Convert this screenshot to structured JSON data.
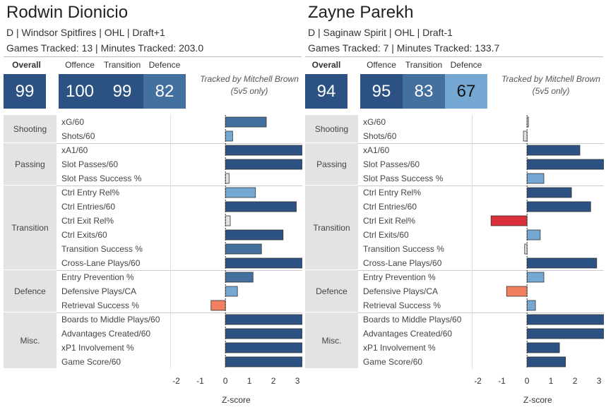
{
  "score_headers": {
    "overall": "Overall",
    "offence": "Offence",
    "transition": "Transition",
    "defence": "Defence"
  },
  "tracked": {
    "line1": "Tracked by Mitchell Brown",
    "line2": "(5v5 only)"
  },
  "axis_title": "Z-score",
  "colors": {
    "dark": "#2b5283",
    "mid": "#4470a0",
    "light": "#74a7d2",
    "neutral": "#e6e1e0",
    "neg_red": "#d9303c",
    "neg_salmon": "#f28060"
  },
  "categories": [
    {
      "name": "Shooting",
      "metrics": [
        "xG/60",
        "Shots/60"
      ]
    },
    {
      "name": "Passing",
      "metrics": [
        "xA1/60",
        "Slot Passes/60",
        "Slot Pass Success %"
      ]
    },
    {
      "name": "Transition",
      "metrics": [
        "Ctrl Entry Rel%",
        "Ctrl Entries/60",
        "Ctrl Exit Rel%",
        "Ctrl Exits/60",
        "Transition Success %",
        "Cross-Lane Plays/60"
      ]
    },
    {
      "name": "Defence",
      "metrics": [
        "Entry Prevention %",
        "Defensive Plays/CA",
        "Retrieval Success %"
      ]
    },
    {
      "name": "Misc.",
      "metrics": [
        "Boards to Middle Plays/60",
        "Advantages Created/60",
        "xP1 Involvement %",
        "Game Score/60"
      ]
    }
  ],
  "players": [
    {
      "name": "Rodwin Dionicio",
      "info_line1": "D | Windsor Spitfires | OHL | Draft+1",
      "info_line2": "Games Tracked: 13 | Minutes Tracked: 203.0",
      "scores": {
        "overall": "99",
        "offence": "100",
        "transition": "99",
        "defence": "82"
      },
      "score_colors": {
        "overall": "#2b5283",
        "offence": "#2b5283",
        "transition": "#2b5283",
        "defence": "#4470a0"
      }
    },
    {
      "name": "Zayne Parekh",
      "info_line1": "D | Saginaw Spirit | OHL | Draft-1",
      "info_line2": "Games Tracked: 7 | Minutes Tracked: 133.7",
      "scores": {
        "overall": "94",
        "offence": "95",
        "transition": "83",
        "defence": "67"
      },
      "score_colors": {
        "overall": "#2b5283",
        "offence": "#2b5283",
        "transition": "#4470a0",
        "defence": "#74a7d2"
      }
    }
  ],
  "chart_data": [
    {
      "type": "bar",
      "title": "Rodwin Dionicio",
      "xlabel": "Z-score",
      "xlim": [
        -2.3,
        3.2
      ],
      "ticks": [
        -2,
        -1,
        0,
        1,
        2,
        3
      ],
      "categories": [
        "xG/60",
        "Shots/60",
        "xA1/60",
        "Slot Passes/60",
        "Slot Pass Success %",
        "Ctrl Entry Rel%",
        "Ctrl Entries/60",
        "Ctrl Exit Rel%",
        "Ctrl Exits/60",
        "Transition Success %",
        "Cross-Lane Plays/60",
        "Entry Prevention %",
        "Defensive Plays/CA",
        "Retrieval Success %",
        "Boards to Middle Plays/60",
        "Advantages Created/60",
        "xP1 Involvement %",
        "Game Score/60"
      ],
      "values": [
        1.7,
        0.3,
        3.3,
        3.3,
        0.15,
        1.25,
        2.95,
        0.2,
        2.4,
        1.5,
        3.3,
        1.15,
        0.5,
        -0.6,
        3.3,
        3.3,
        3.3,
        3.3
      ],
      "colors": [
        "#4470a0",
        "#74a7d2",
        "#2b5283",
        "#2b5283",
        "#e6e1e0",
        "#74a7d2",
        "#2b5283",
        "#e6e1e0",
        "#2b5283",
        "#4470a0",
        "#2b5283",
        "#4470a0",
        "#74a7d2",
        "#f28060",
        "#2b5283",
        "#2b5283",
        "#2b5283",
        "#2b5283"
      ]
    },
    {
      "type": "bar",
      "title": "Zayne Parekh",
      "xlabel": "Z-score",
      "xlim": [
        -2.3,
        3.2
      ],
      "ticks": [
        -2,
        -1,
        0,
        1,
        2,
        3
      ],
      "categories": [
        "xG/60",
        "Shots/60",
        "xA1/60",
        "Slot Passes/60",
        "Slot Pass Success %",
        "Ctrl Entry Rel%",
        "Ctrl Entries/60",
        "Ctrl Exit Rel%",
        "Ctrl Exits/60",
        "Transition Success %",
        "Cross-Lane Plays/60",
        "Entry Prevention %",
        "Defensive Plays/CA",
        "Retrieval Success %",
        "Boards to Middle Plays/60",
        "Advantages Created/60",
        "xP1 Involvement %",
        "Game Score/60"
      ],
      "values": [
        0.05,
        -0.15,
        2.2,
        3.3,
        0.7,
        1.85,
        2.65,
        -1.5,
        0.55,
        -0.1,
        2.9,
        0.7,
        -0.85,
        0.35,
        3.3,
        3.3,
        1.35,
        1.6
      ],
      "colors": [
        "#e6e1e0",
        "#e6e1e0",
        "#2b5283",
        "#2b5283",
        "#74a7d2",
        "#2b5283",
        "#2b5283",
        "#d9303c",
        "#74a7d2",
        "#e6e1e0",
        "#2b5283",
        "#74a7d2",
        "#f28060",
        "#74a7d2",
        "#2b5283",
        "#2b5283",
        "#2b5283",
        "#2b5283"
      ]
    }
  ]
}
